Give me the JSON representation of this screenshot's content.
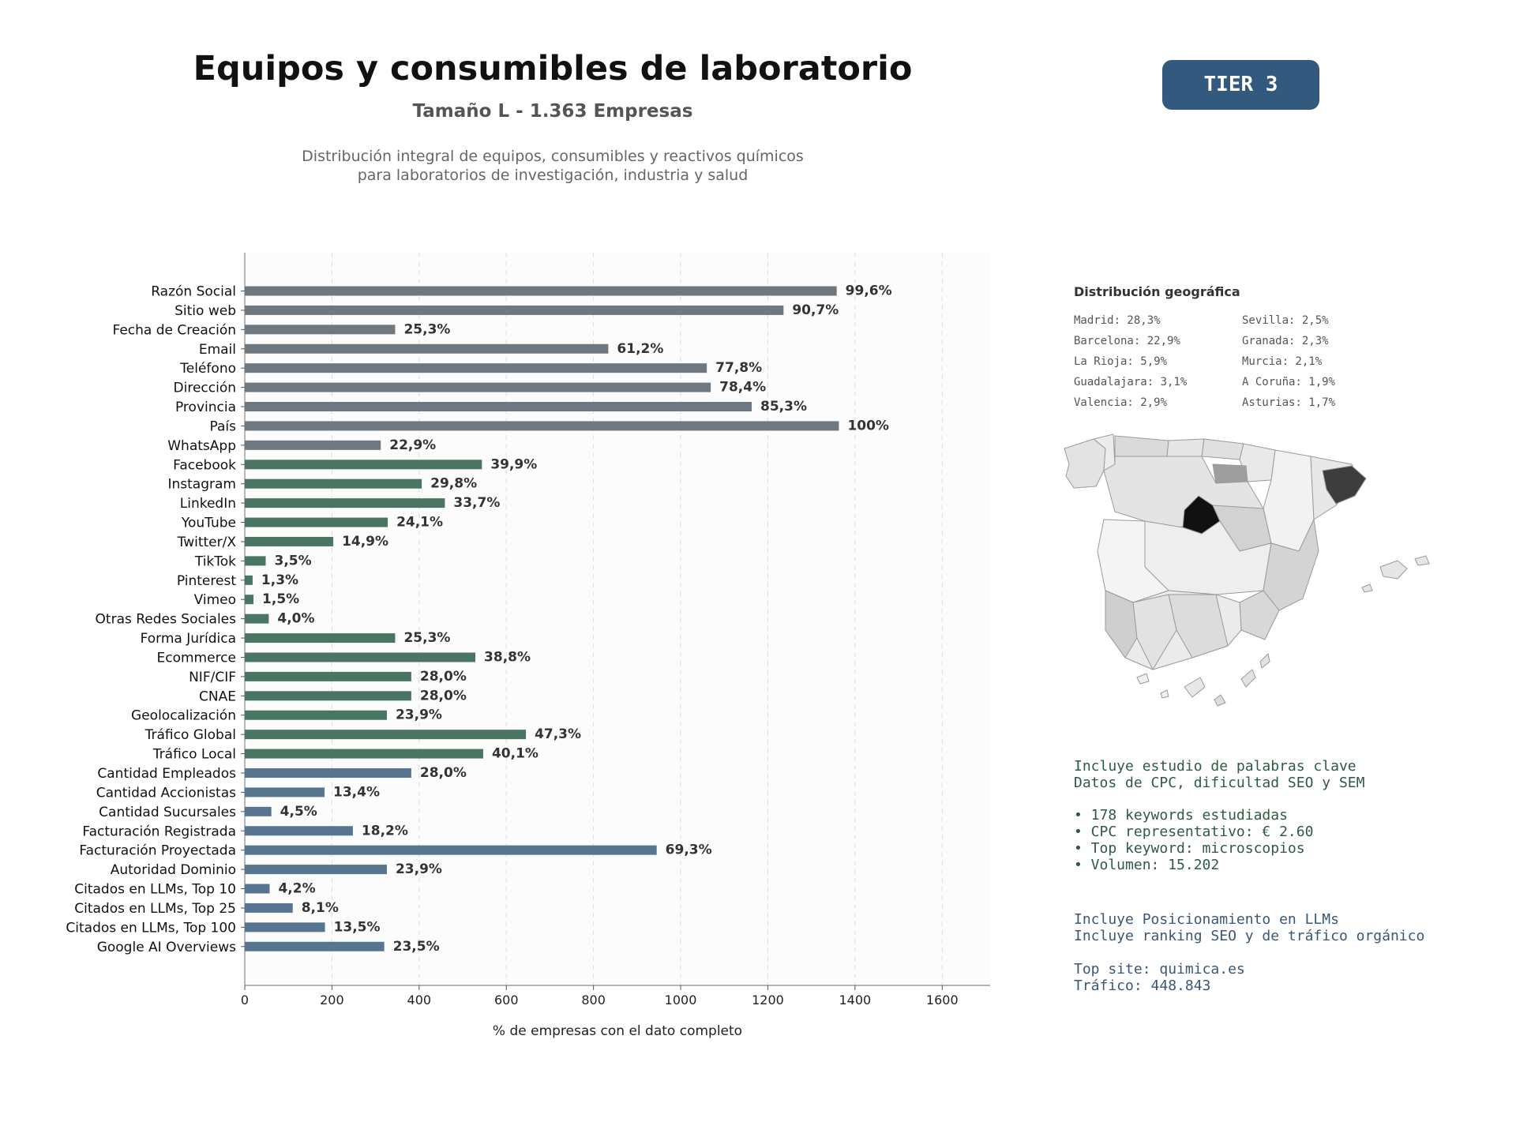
{
  "header": {
    "title": "Equipos y consumibles de laboratorio",
    "subtitle": "Tamaño L - 1.363 Empresas",
    "description_line1": "Distribución integral de equipos, consumibles y reactivos químicos",
    "description_line2": "para laboratorios de investigación, industria y salud",
    "tier_badge": "TIER 3"
  },
  "colors": {
    "gray": "#6e7881",
    "green": "#4a7563",
    "blue": "#577490",
    "badge": "#335a7e"
  },
  "chart_data": {
    "type": "bar",
    "orientation": "horizontal",
    "xlabel": "% de empresas con el dato completo",
    "xlim": [
      0,
      1710
    ],
    "xticks": [
      0,
      200,
      400,
      600,
      800,
      1000,
      1200,
      1400,
      1600
    ],
    "grid": "vertical dashed",
    "categories": [
      "Razón Social",
      "Sitio web",
      "Fecha de Creación",
      "Email",
      "Teléfono",
      "Dirección",
      "Provincia",
      "País",
      "WhatsApp",
      "Facebook",
      "Instagram",
      "LinkedIn",
      "YouTube",
      "Twitter/X",
      "TikTok",
      "Pinterest",
      "Vimeo",
      "Otras Redes Sociales",
      "Forma Jurídica",
      "Ecommerce",
      "NIF/CIF",
      "CNAE",
      "Geolocalización",
      "Tráfico Global",
      "Tráfico Local",
      "Cantidad Empleados",
      "Cantidad Accionistas",
      "Cantidad Sucursales",
      "Facturación Registrada",
      "Facturación Proyectada",
      "Autoridad Dominio",
      "Citados en LLMs, Top 10",
      "Citados en LLMs, Top 25",
      "Citados en LLMs, Top 100",
      "Google AI Overviews"
    ],
    "values": [
      1358,
      1236,
      345,
      834,
      1060,
      1069,
      1163,
      1363,
      312,
      544,
      406,
      459,
      328,
      203,
      48,
      18,
      20,
      55,
      345,
      529,
      382,
      382,
      326,
      645,
      547,
      382,
      183,
      61,
      248,
      945,
      326,
      57,
      110,
      184,
      320
    ],
    "labels": [
      "99,6%",
      "90,7%",
      "25,3%",
      "61,2%",
      "77,8%",
      "78,4%",
      "85,3%",
      "100%",
      "22,9%",
      "39,9%",
      "29,8%",
      "33,7%",
      "24,1%",
      "14,9%",
      "3,5%",
      "1,3%",
      "1,5%",
      "4,0%",
      "25,3%",
      "38,8%",
      "28,0%",
      "28,0%",
      "23,9%",
      "47,3%",
      "40,1%",
      "28,0%",
      "13,4%",
      "4,5%",
      "18,2%",
      "69,3%",
      "23,9%",
      "4,2%",
      "8,1%",
      "13,5%",
      "23,5%"
    ],
    "groups": [
      "gray",
      "gray",
      "gray",
      "gray",
      "gray",
      "gray",
      "gray",
      "gray",
      "gray",
      "green",
      "green",
      "green",
      "green",
      "green",
      "green",
      "green",
      "green",
      "green",
      "green",
      "green",
      "green",
      "green",
      "green",
      "green",
      "green",
      "blue",
      "blue",
      "blue",
      "blue",
      "blue",
      "blue",
      "blue",
      "blue",
      "blue",
      "blue"
    ]
  },
  "geo": {
    "title": "Distribución geográfica",
    "col1": [
      "Madrid: 28,3%",
      "Barcelona: 22,9%",
      "La Rioja: 5,9%",
      "Guadalajara: 3,1%",
      "Valencia: 2,9%"
    ],
    "col2": [
      "Sevilla: 2,5%",
      "Granada: 2,3%",
      "Murcia: 2,1%",
      "A Coruña: 1,9%",
      "Asturias: 1,7%"
    ]
  },
  "seo_info": {
    "line1": "Incluye estudio de palabras clave",
    "line2": "Datos de CPC, dificultad SEO y SEM",
    "bullet1": "• 178 keywords estudiadas",
    "bullet2": "• CPC representativo: € 2.60",
    "bullet3": "• Top keyword: microscopios",
    "bullet4": "• Volumen: 15.202"
  },
  "llm_info": {
    "line1": "Incluye Posicionamiento en LLMs",
    "line2": "Incluye ranking SEO y de tráfico orgánico",
    "line3": "Top site: quimica.es",
    "line4": "Tráfico: 448.843"
  }
}
